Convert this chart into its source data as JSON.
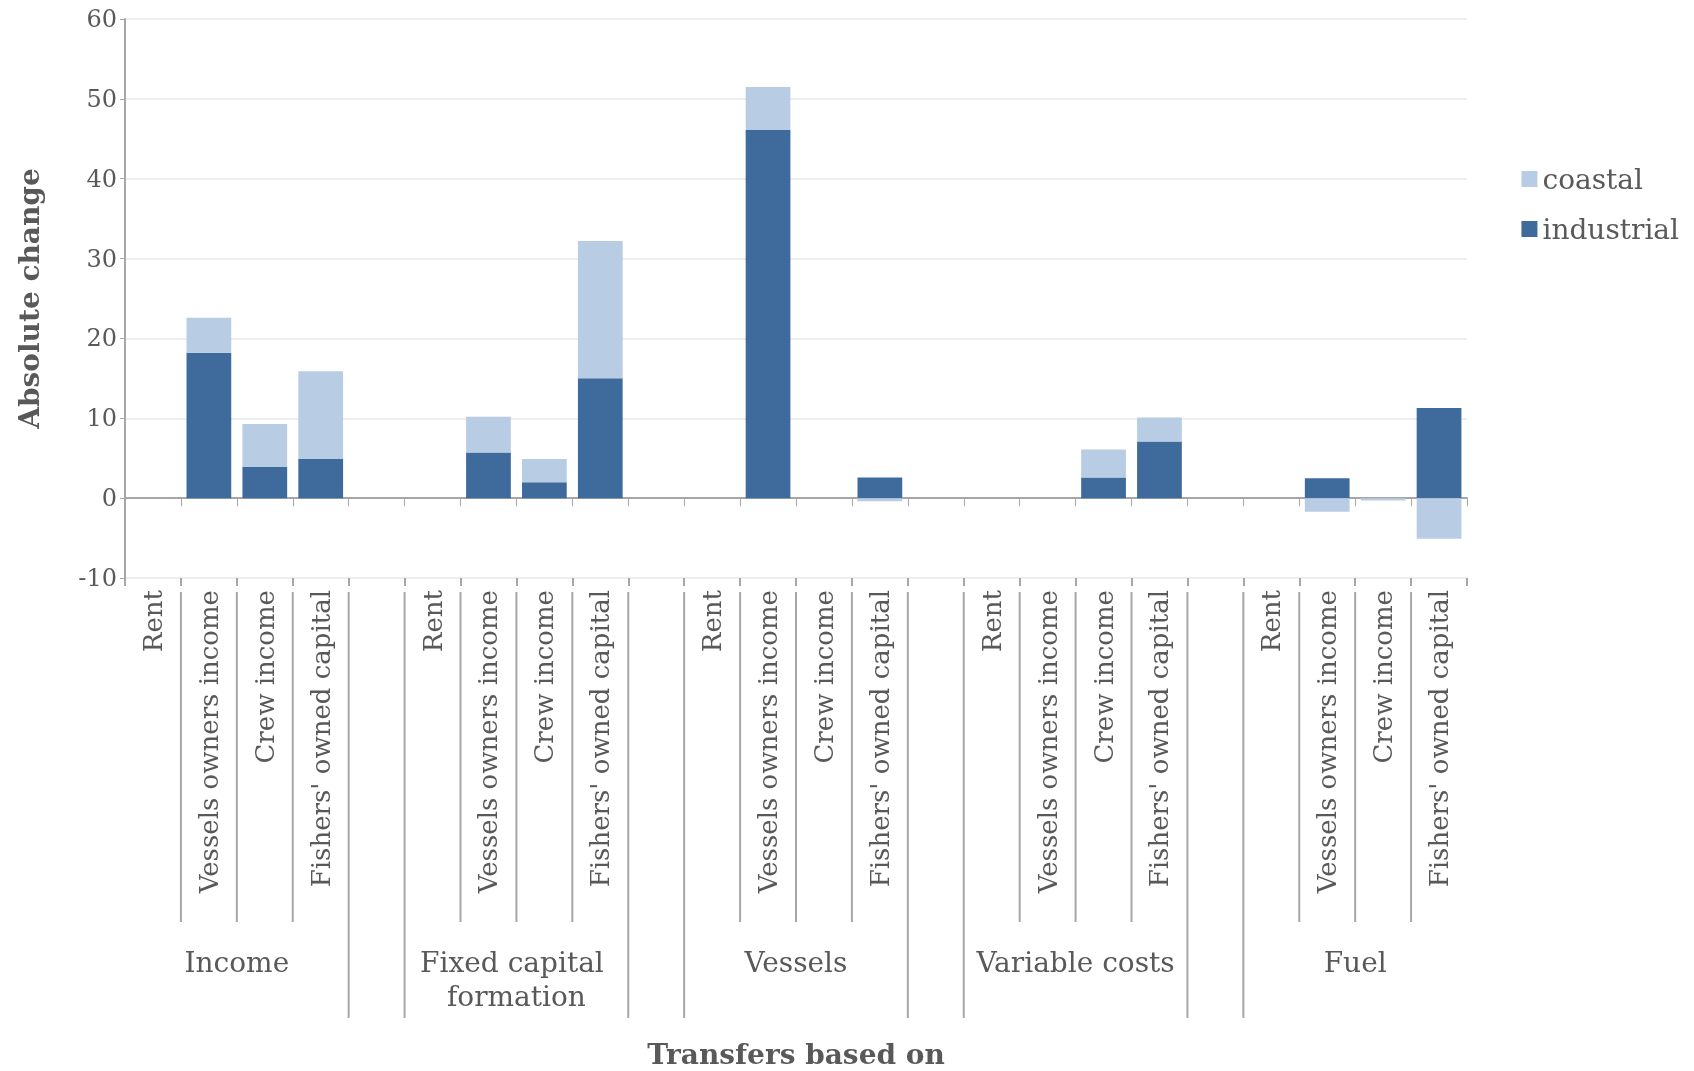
{
  "chart_data": {
    "type": "bar",
    "stacked": true,
    "ylabel": "Absolute change",
    "categories": [
      "Rent",
      "Vessels owners income",
      "Crew income",
      "Fishers' owned capital",
      null,
      "Rent",
      "Vessels owners income",
      "Crew income",
      "Fishers' owned capital",
      null,
      "Rent",
      "Vessels owners income",
      "Crew income",
      "Fishers' owned capital",
      null,
      "Rent",
      "Vessels owners income",
      "Crew income",
      "Fishers' owned capital",
      null,
      "Rent",
      "Vessels owners income",
      "Crew income",
      "Fishers' owned capital"
    ],
    "series": [
      {
        "name": "industrial",
        "color": "#3f6a9c",
        "values": [
          0,
          18.2,
          3.9,
          4.9,
          null,
          0,
          5.7,
          2.0,
          15.0,
          null,
          0,
          46.1,
          0,
          2.6,
          null,
          0,
          0,
          2.6,
          7.1,
          null,
          0,
          2.5,
          0,
          11.3
        ]
      },
      {
        "name": "coastal",
        "color": "#b8cce4",
        "values": [
          0,
          4.4,
          5.4,
          11.0,
          null,
          0,
          4.5,
          2.9,
          17.2,
          null,
          0,
          5.4,
          0,
          -0.4,
          null,
          0,
          0,
          3.5,
          3.0,
          null,
          0,
          -1.7,
          -0.3,
          -5.1
        ]
      }
    ],
    "annotations": [
      "Income",
      "Fixed capital formation",
      "Vessels",
      "Variable costs",
      "Fuel",
      "Transfers based on"
    ],
    "ylim": [
      -10,
      60
    ],
    "yticks": [
      -10,
      0,
      10,
      20,
      30,
      40,
      50,
      60
    ],
    "grid": "y",
    "legend": "right"
  }
}
